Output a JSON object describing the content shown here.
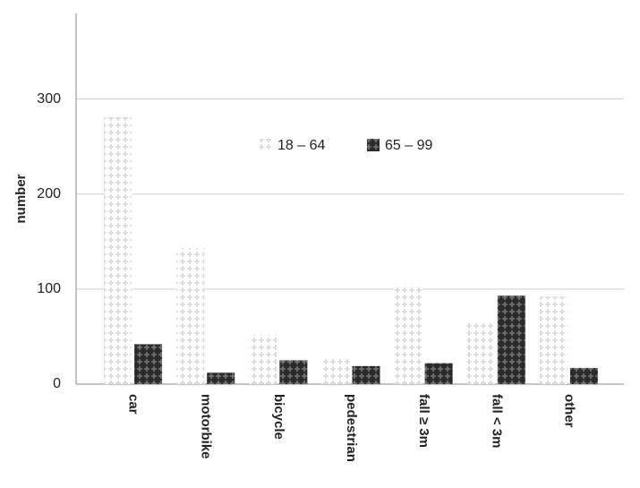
{
  "chart_data": {
    "type": "bar",
    "y_label": "number",
    "categories": [
      "car",
      "motorbike",
      "bicycle",
      "pedestrian",
      "fall ≥ 3m",
      "fall < 3m",
      "other"
    ],
    "series": [
      {
        "name": "18 – 64",
        "color": "#d6d6d6",
        "values": [
          281,
          143,
          52,
          28,
          104,
          66,
          92
        ]
      },
      {
        "name": "65 – 99",
        "color": "#2b2b2b",
        "values": [
          42,
          12,
          25,
          19,
          22,
          93,
          17
        ]
      }
    ],
    "ylim": [
      0,
      390
    ],
    "yticks": [
      0,
      100,
      200,
      300
    ],
    "grid": true
  }
}
